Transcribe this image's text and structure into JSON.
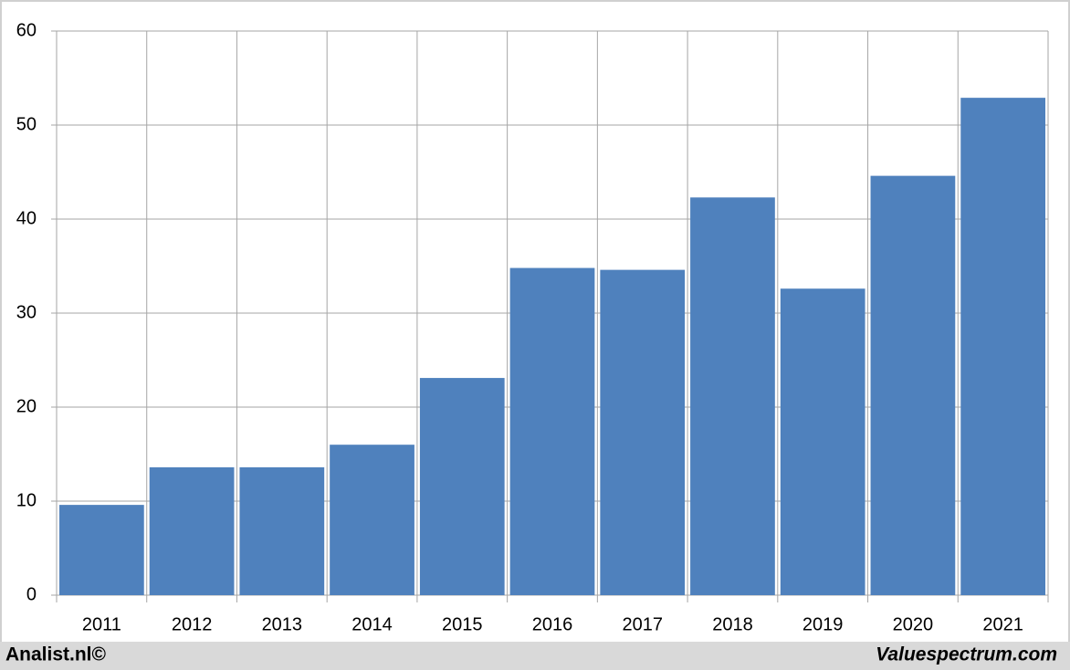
{
  "chart_data": {
    "type": "bar",
    "categories": [
      "2011",
      "2012",
      "2013",
      "2014",
      "2015",
      "2016",
      "2017",
      "2018",
      "2019",
      "2020",
      "2021"
    ],
    "values": [
      9.6,
      13.6,
      13.6,
      16.0,
      23.1,
      34.8,
      34.6,
      42.3,
      32.6,
      44.6,
      52.9
    ],
    "color": "#4f81bd",
    "ylim": [
      0,
      60
    ],
    "yticks": [
      0,
      10,
      20,
      30,
      40,
      50,
      60
    ],
    "grid": true
  },
  "footer": {
    "left": "Analist.nl©",
    "right": "Valuespectrum.com"
  }
}
